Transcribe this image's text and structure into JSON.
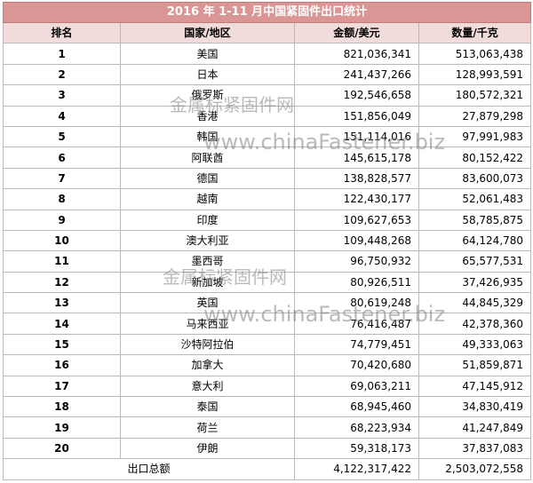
{
  "table": {
    "title": "2016 年 1-11 月中国紧固件出口统计",
    "headers": [
      "排名",
      "国家/地区",
      "金额/美元",
      "数量/千克"
    ],
    "rows": [
      [
        "1",
        "美国",
        "821,036,341",
        "513,063,438"
      ],
      [
        "2",
        "日本",
        "241,437,266",
        "128,993,591"
      ],
      [
        "3",
        "俄罗斯",
        "192,546,658",
        "180,572,321"
      ],
      [
        "4",
        "香港",
        "151,856,049",
        "27,879,298"
      ],
      [
        "5",
        "韩国",
        "151,114,016",
        "97,991,983"
      ],
      [
        "6",
        "阿联酋",
        "145,615,178",
        "80,152,422"
      ],
      [
        "7",
        "德国",
        "138,828,577",
        "83,600,073"
      ],
      [
        "8",
        "越南",
        "122,430,177",
        "52,061,483"
      ],
      [
        "9",
        "印度",
        "109,627,653",
        "58,785,875"
      ],
      [
        "10",
        "澳大利亚",
        "109,448,268",
        "64,124,780"
      ],
      [
        "11",
        "墨西哥",
        "96,750,932",
        "65,577,531"
      ],
      [
        "12",
        "新加坡",
        "80,926,511",
        "37,426,935"
      ],
      [
        "13",
        "英国",
        "80,619,248",
        "44,845,329"
      ],
      [
        "14",
        "马来西亚",
        "76,416,487",
        "42,378,360"
      ],
      [
        "15",
        "沙特阿拉伯",
        "74,779,451",
        "49,333,063"
      ],
      [
        "16",
        "加拿大",
        "70,420,680",
        "51,859,871"
      ],
      [
        "17",
        "意大利",
        "69,063,211",
        "47,145,912"
      ],
      [
        "18",
        "泰国",
        "68,945,460",
        "34,830,419"
      ],
      [
        "19",
        "荷兰",
        "68,223,934",
        "41,247,849"
      ],
      [
        "20",
        "伊朗",
        "59,318,173",
        "37,837,083"
      ]
    ],
    "total": [
      "出口总额",
      "4,122,317,422",
      "2,503,072,558"
    ]
  },
  "watermarks": [
    {
      "cn": "金属标紧固件网",
      "en": "www.chinaFastener.biz"
    },
    {
      "cn": "金属标紧固件网",
      "en": "www.chinaFastener.biz"
    }
  ]
}
